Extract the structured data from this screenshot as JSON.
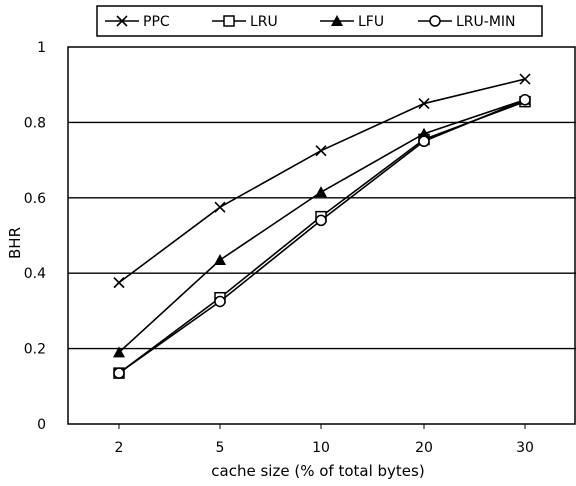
{
  "chart_data": {
    "type": "line",
    "title": "",
    "xlabel": "cache size (% of total bytes)",
    "ylabel": "BHR",
    "categories": [
      "2",
      "5",
      "10",
      "20",
      "30"
    ],
    "ylim": [
      0,
      1
    ],
    "yticks": [
      "0",
      "0.2",
      "0.4",
      "0.6",
      "0.8",
      "1"
    ],
    "grid": "horizontal",
    "legend_position": "top",
    "series": [
      {
        "name": "PPC",
        "marker": "x",
        "values": [
          0.375,
          0.575,
          0.725,
          0.85,
          0.915
        ]
      },
      {
        "name": "LRU",
        "marker": "open-square",
        "values": [
          0.135,
          0.335,
          0.55,
          0.755,
          0.855
        ]
      },
      {
        "name": "LFU",
        "marker": "filled-triangle",
        "values": [
          0.19,
          0.435,
          0.615,
          0.77,
          0.86
        ]
      },
      {
        "name": "LRU-MIN",
        "marker": "open-circle",
        "values": [
          0.135,
          0.325,
          0.54,
          0.75,
          0.86
        ]
      }
    ],
    "colors": {
      "line": "#000000",
      "grid": "#000000",
      "background": "#ffffff"
    }
  }
}
